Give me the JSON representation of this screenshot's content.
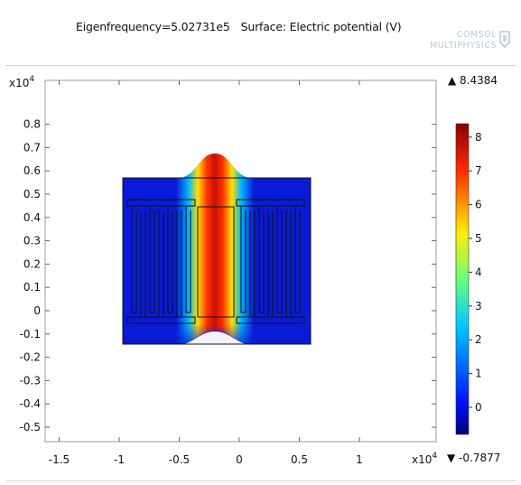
{
  "title": {
    "eigenfrequency": "Eigenfrequency=5.02731e5",
    "surface": "Surface: Electric potential (V)"
  },
  "logo": {
    "line1": "COMSOL",
    "line2": "MULTIPHYSICS"
  },
  "axes": {
    "y_exponent_label": "x10",
    "y_exponent_power": "4",
    "x_exponent_label": "x10",
    "x_exponent_power": "4",
    "y_ticks": [
      "0.8",
      "0.7",
      "0.6",
      "0.5",
      "0.4",
      "0.3",
      "0.2",
      "0.1",
      "0",
      "-0.1",
      "-0.2",
      "-0.3",
      "-0.4",
      "-0.5"
    ],
    "y_values": [
      0.8,
      0.7,
      0.6,
      0.5,
      0.4,
      0.3,
      0.2,
      0.1,
      0,
      -0.1,
      -0.2,
      -0.3,
      -0.4,
      -0.5
    ],
    "x_ticks": [
      "-1.5",
      "-1",
      "-0.5",
      "0",
      "0.5",
      "1"
    ],
    "x_values": [
      -1.5,
      -1,
      -0.5,
      0,
      0.5,
      1
    ]
  },
  "colorbar": {
    "max_label": "▲ 8.4384",
    "min_label": "▼ -0.7877",
    "ticks": [
      "8",
      "7",
      "6",
      "5",
      "4",
      "3",
      "2",
      "1",
      "0"
    ],
    "tick_values": [
      8,
      7,
      6,
      5,
      4,
      3,
      2,
      1,
      0
    ],
    "max": 8.4384,
    "min": -0.7877
  },
  "colors": {
    "field_background": "#0a1bd6",
    "field_hot": "#c8140a",
    "plot_frame": "#9a9a9a"
  }
}
